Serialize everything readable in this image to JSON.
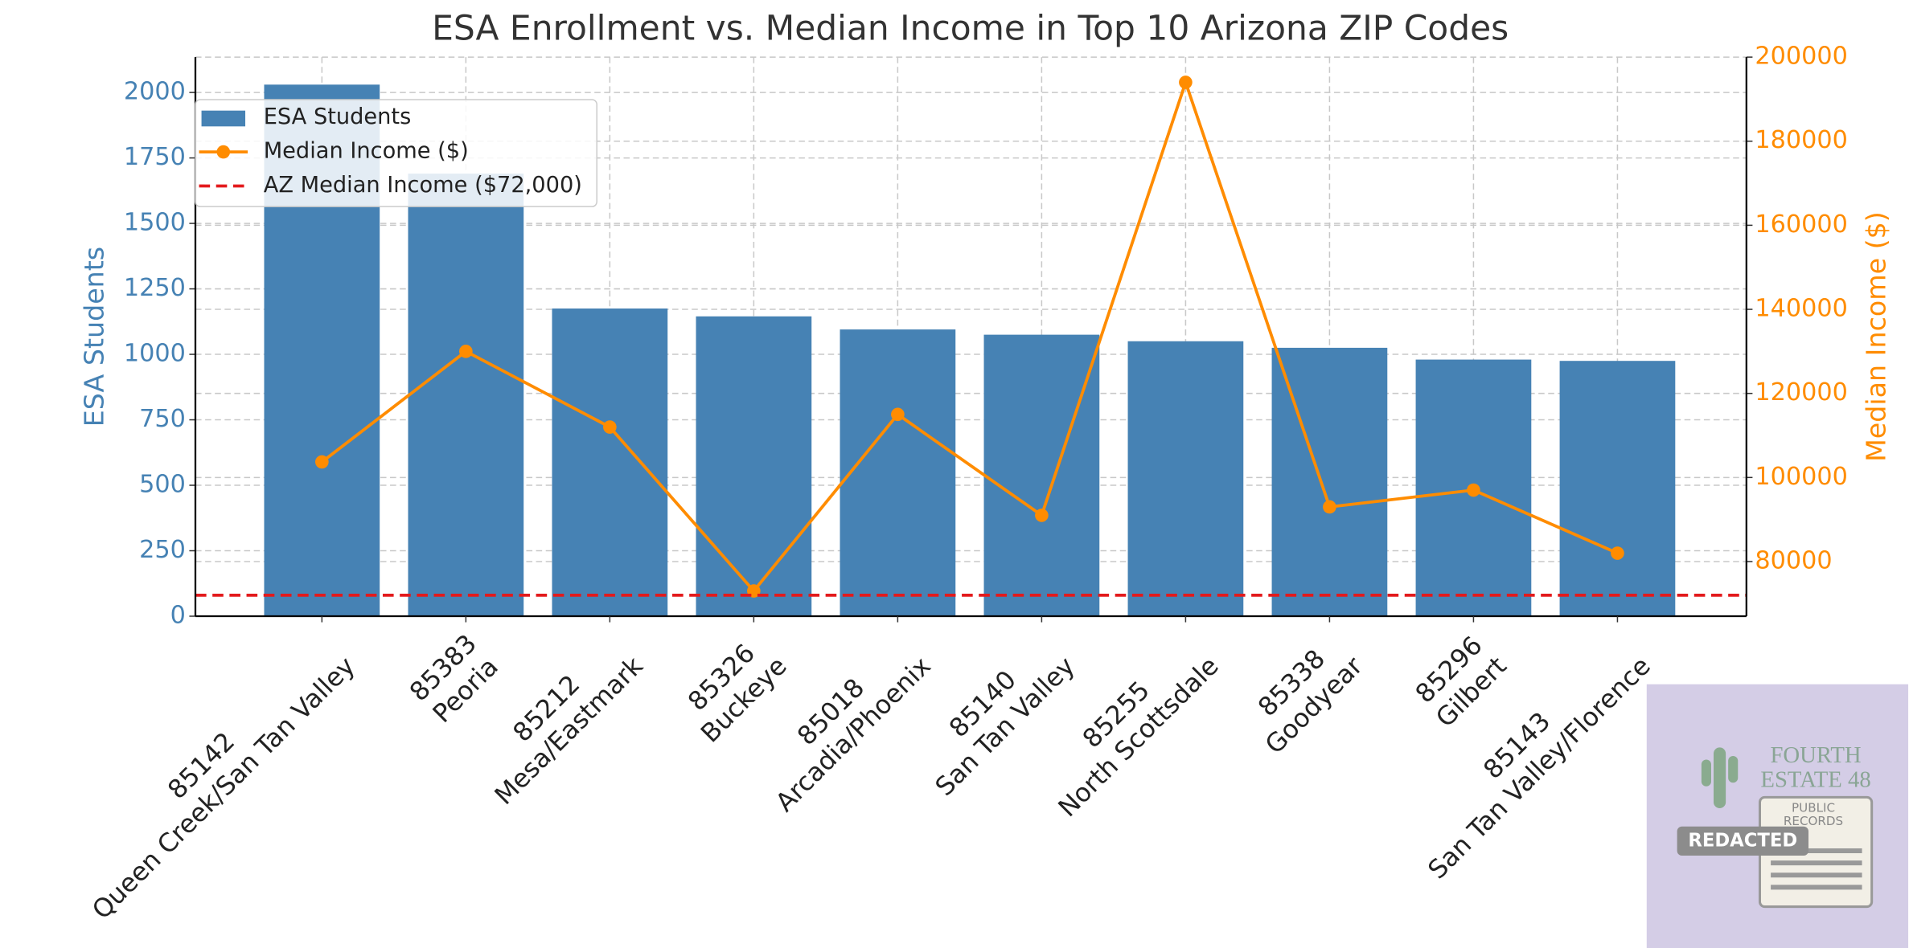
{
  "chart_data": {
    "type": "bar-line",
    "title": "ESA Enrollment vs. Median Income in Top 10 Arizona ZIP Codes",
    "y_label": "ESA Students",
    "y2_label": "Median Income ($)",
    "categories": [
      [
        "85142",
        "Queen Creek/San Tan Valley"
      ],
      [
        "85383",
        "Peoria"
      ],
      [
        "85212",
        "Mesa/Eastmark"
      ],
      [
        "85326",
        "Buckeye"
      ],
      [
        "85018",
        "Arcadia/Phoenix"
      ],
      [
        "85140",
        "San Tan Valley"
      ],
      [
        "85255",
        "North Scottsdale"
      ],
      [
        "85338",
        "Goodyear"
      ],
      [
        "85296",
        "Gilbert"
      ],
      [
        "85143",
        "San Tan Valley/Florence"
      ]
    ],
    "series": [
      {
        "name": "ESA Students",
        "color": "#4682b4",
        "values": [
          2030,
          1690,
          1175,
          1145,
          1095,
          1075,
          1050,
          1025,
          980,
          975
        ]
      },
      {
        "name": "Median Income ($)",
        "color": "#ff8c00",
        "axis": "y2",
        "values": [
          103700,
          130000,
          112000,
          73000,
          115000,
          91000,
          194000,
          93000,
          97000,
          82000
        ]
      }
    ],
    "reference_line": {
      "name": "AZ Median Income ($72,000)",
      "value": 72000,
      "axis": "y2",
      "color": "#e31a1c"
    },
    "ylim": [
      0,
      2135
    ],
    "yticks": [
      0,
      250,
      500,
      750,
      1000,
      1250,
      1500,
      1750,
      2000
    ],
    "y2lim": [
      67000,
      200000
    ],
    "y2ticks": [
      80000,
      100000,
      120000,
      140000,
      160000,
      180000,
      200000
    ],
    "grid": true,
    "legend": "upper left"
  },
  "watermark": {
    "lines": [
      "FOURTH",
      "ESTATE 48"
    ],
    "stamp": [
      "PUBLIC",
      "RECORDS"
    ],
    "badge": "REDACTED"
  }
}
